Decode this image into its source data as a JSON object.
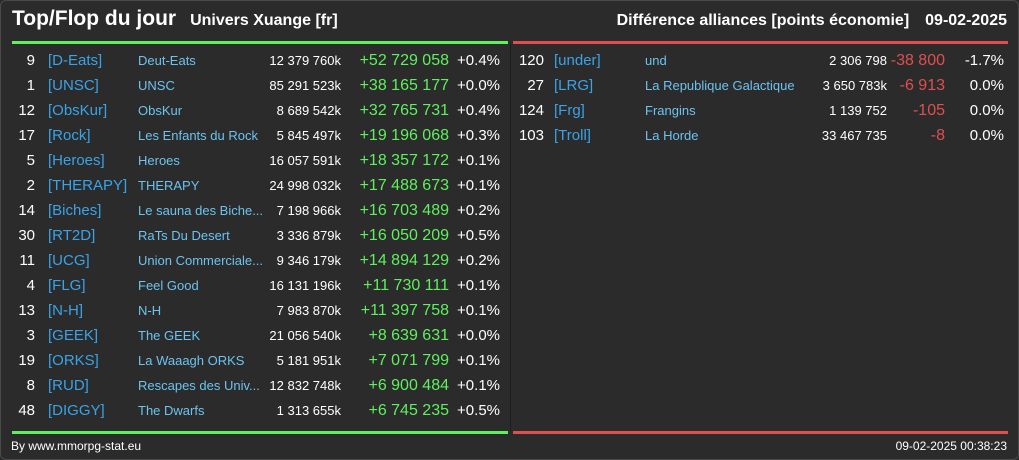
{
  "header": {
    "title": "Top/Flop du jour",
    "universe": "Univers Xuange [fr]",
    "category": "Différence alliances [points économie]",
    "date": "09-02-2025"
  },
  "colors": {
    "gain": "#5ef05e",
    "loss": "#e04f4f",
    "tag": "#3aa3e8",
    "name": "#6cc3f0",
    "background": "#2b2b2b"
  },
  "top": [
    {
      "rank": "9",
      "tag": "[D-Eats]",
      "name": "Deut-Eats",
      "points": "12 379 760k",
      "diff": "+52 729 058",
      "pct": "+0.4%"
    },
    {
      "rank": "1",
      "tag": "[UNSC]",
      "name": "UNSC",
      "points": "85 291 523k",
      "diff": "+38 165 177",
      "pct": "+0.0%"
    },
    {
      "rank": "12",
      "tag": "[ObsKur]",
      "name": "ObsKur",
      "points": "8 689 542k",
      "diff": "+32 765 731",
      "pct": "+0.4%"
    },
    {
      "rank": "17",
      "tag": "[Rock]",
      "name": "Les Enfants du Rock",
      "points": "5 845 497k",
      "diff": "+19 196 068",
      "pct": "+0.3%"
    },
    {
      "rank": "5",
      "tag": "[Heroes]",
      "name": "Heroes",
      "points": "16 057 591k",
      "diff": "+18 357 172",
      "pct": "+0.1%"
    },
    {
      "rank": "2",
      "tag": "[THERAPY]",
      "name": "THERAPY",
      "points": "24 998 032k",
      "diff": "+17 488 673",
      "pct": "+0.1%"
    },
    {
      "rank": "14",
      "tag": "[Biches]",
      "name": "Le sauna des Biche...",
      "points": "7 198 966k",
      "diff": "+16 703 489",
      "pct": "+0.2%"
    },
    {
      "rank": "30",
      "tag": "[RT2D]",
      "name": "RaTs Du Desert",
      "points": "3 336 879k",
      "diff": "+16 050 209",
      "pct": "+0.5%"
    },
    {
      "rank": "11",
      "tag": "[UCG]",
      "name": "Union Commerciale...",
      "points": "9 346 179k",
      "diff": "+14 894 129",
      "pct": "+0.2%"
    },
    {
      "rank": "4",
      "tag": "[FLG]",
      "name": "Feel Good",
      "points": "16 131 196k",
      "diff": "+11 730 111",
      "pct": "+0.1%"
    },
    {
      "rank": "13",
      "tag": "[N-H]",
      "name": "N-H",
      "points": "7 983 870k",
      "diff": "+11 397 758",
      "pct": "+0.1%"
    },
    {
      "rank": "3",
      "tag": "[GEEK]",
      "name": "The GEEK",
      "points": "21 056 540k",
      "diff": "+8 639 631",
      "pct": "+0.0%"
    },
    {
      "rank": "19",
      "tag": "[ORKS]",
      "name": "La Waaagh ORKS",
      "points": "5 181 951k",
      "diff": "+7 071 799",
      "pct": "+0.1%"
    },
    {
      "rank": "8",
      "tag": "[RUD]",
      "name": "Rescapes des Univ...",
      "points": "12 832 748k",
      "diff": "+6 900 484",
      "pct": "+0.1%"
    },
    {
      "rank": "48",
      "tag": "[DIGGY]",
      "name": "The Dwarfs",
      "points": "1 313 655k",
      "diff": "+6 745 235",
      "pct": "+0.5%"
    }
  ],
  "flop": [
    {
      "rank": "120",
      "tag": "[under]",
      "name": "und",
      "points": "2 306 798",
      "diff": "-38 800",
      "pct": "-1.7%"
    },
    {
      "rank": "27",
      "tag": "[LRG]",
      "name": "La Republique Galactique",
      "points": "3 650 783k",
      "diff": "-6 913",
      "pct": "0.0%"
    },
    {
      "rank": "124",
      "tag": "[Frg]",
      "name": "Frangins",
      "points": "1 139 752",
      "diff": "-105",
      "pct": "0.0%"
    },
    {
      "rank": "103",
      "tag": "[Troll]",
      "name": "La Horde",
      "points": "33 467 735",
      "diff": "-8",
      "pct": "0.0%"
    }
  ],
  "footer": {
    "source": "By www.mmorpg-stat.eu",
    "timestamp": "09-02-2025 00:38:23"
  }
}
